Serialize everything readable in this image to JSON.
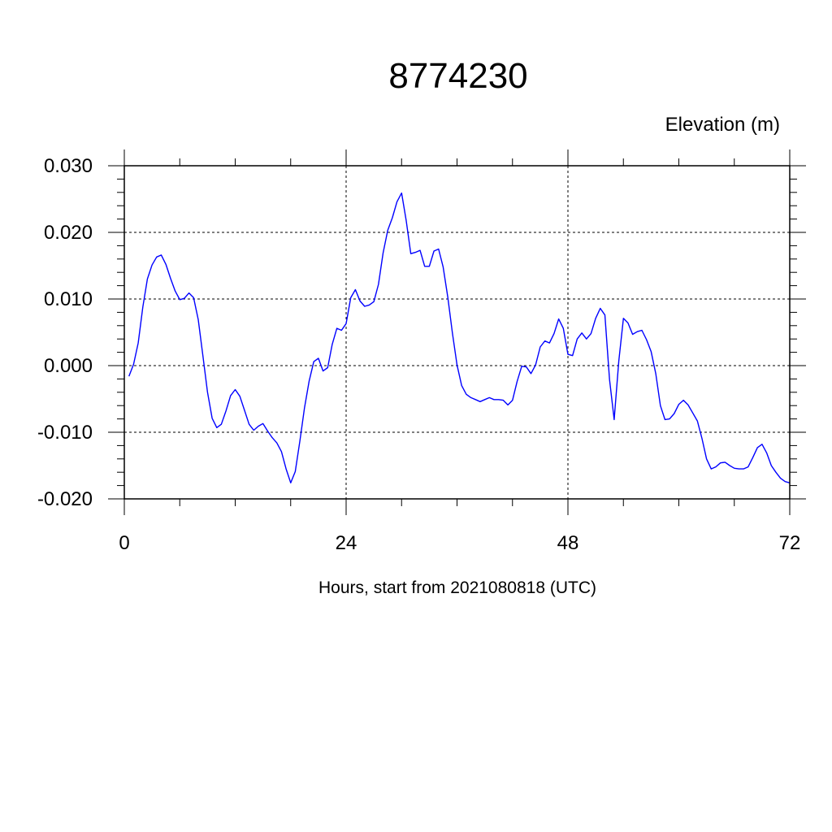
{
  "chart_data": {
    "type": "line",
    "title": "8774230",
    "ylabel": "Elevation (m)",
    "xlabel": "Hours, start from 2021080818 (UTC)",
    "xlim": [
      0,
      72
    ],
    "ylim": [
      -0.02,
      0.03
    ],
    "x_ticks": [
      0,
      24,
      48,
      72
    ],
    "x_tick_labels": [
      "0",
      "24",
      "48",
      "72"
    ],
    "y_ticks": [
      -0.02,
      -0.01,
      0.0,
      0.01,
      0.02,
      0.03
    ],
    "y_tick_labels": [
      "-0.020",
      "-0.010",
      "0.000",
      "0.010",
      "0.020",
      "0.030"
    ],
    "grid": true,
    "series": [
      {
        "color": "#0000ff",
        "x": [
          0.5,
          1.0,
          1.5,
          2.0,
          2.5,
          3.0,
          3.5,
          4.0,
          4.5,
          5.0,
          5.5,
          6.0,
          6.5,
          7.0,
          7.5,
          8.0,
          8.5,
          9.0,
          9.5,
          10.0,
          10.5,
          11.0,
          11.5,
          12.0,
          12.5,
          13.0,
          13.5,
          14.0,
          14.5,
          15.0,
          15.5,
          16.0,
          16.5,
          17.0,
          17.5,
          18.0,
          18.5,
          19.0,
          19.5,
          20.0,
          20.5,
          21.0,
          21.5,
          22.0,
          22.5,
          23.0,
          23.5,
          24.0,
          24.5,
          25.0,
          25.5,
          26.0,
          26.5,
          27.0,
          27.5,
          28.0,
          28.5,
          29.0,
          29.5,
          30.0,
          30.5,
          31.0,
          31.5,
          32.0,
          32.5,
          33.0,
          33.5,
          34.0,
          34.5,
          35.0,
          35.5,
          36.0,
          36.5,
          37.0,
          37.5,
          38.0,
          38.5,
          39.0,
          39.5,
          40.0,
          40.5,
          41.0,
          41.5,
          42.0,
          42.5,
          43.0,
          43.5,
          44.0,
          44.5,
          45.0,
          45.5,
          46.0,
          46.5,
          47.0,
          47.5,
          48.0,
          48.5,
          49.0,
          49.5,
          50.0,
          50.5,
          51.0,
          51.5,
          52.0,
          52.5,
          53.0,
          53.5,
          54.0,
          54.5,
          55.0,
          55.5,
          56.0,
          56.5,
          57.0,
          57.5,
          58.0,
          58.5,
          59.0,
          59.5,
          60.0,
          60.5,
          61.0,
          61.5,
          62.0,
          62.5,
          63.0,
          63.5,
          64.0,
          64.5,
          65.0,
          65.5,
          66.0,
          66.5,
          67.0,
          67.5,
          68.0,
          68.5,
          69.0,
          69.5,
          70.0,
          70.5,
          71.0,
          71.5,
          72.0
        ],
        "y": [
          -0.0016,
          0.0002,
          0.0034,
          0.0088,
          0.013,
          0.0151,
          0.0163,
          0.0166,
          0.0152,
          0.0131,
          0.0112,
          0.0099,
          0.0101,
          0.0109,
          0.0102,
          0.0069,
          0.0015,
          -0.004,
          -0.0079,
          -0.0093,
          -0.0088,
          -0.0068,
          -0.0045,
          -0.0036,
          -0.0046,
          -0.0067,
          -0.0088,
          -0.0097,
          -0.0091,
          -0.0087,
          -0.0098,
          -0.0108,
          -0.0116,
          -0.0129,
          -0.0155,
          -0.0176,
          -0.0159,
          -0.0113,
          -0.0063,
          -0.0023,
          0.0006,
          0.0011,
          -0.0008,
          -0.0003,
          0.0032,
          0.0056,
          0.0053,
          0.0063,
          0.0102,
          0.0114,
          0.0097,
          0.0089,
          0.0091,
          0.0096,
          0.0122,
          0.0169,
          0.0203,
          0.0222,
          0.0246,
          0.0259,
          0.0218,
          0.0168,
          0.017,
          0.0173,
          0.0149,
          0.0149,
          0.0172,
          0.0175,
          0.0148,
          0.0103,
          0.0049,
          0.0001,
          -0.003,
          -0.0043,
          -0.0048,
          -0.0051,
          -0.0054,
          -0.0051,
          -0.0048,
          -0.0051,
          -0.0051,
          -0.0052,
          -0.0059,
          -0.0052,
          -0.0024,
          -0.0001,
          -0.0002,
          -0.0012,
          0.0001,
          0.0028,
          0.0037,
          0.0034,
          0.0048,
          0.007,
          0.0056,
          0.0017,
          0.0015,
          0.004,
          0.0049,
          0.004,
          0.0048,
          0.0071,
          0.0086,
          0.0076,
          -0.0021,
          -0.0081,
          0.0007,
          0.0071,
          0.0064,
          0.0047,
          0.0051,
          0.0053,
          0.0039,
          0.0021,
          -0.0012,
          -0.006,
          -0.0081,
          -0.008,
          -0.0072,
          -0.0058,
          -0.0052,
          -0.0059,
          -0.0071,
          -0.0083,
          -0.0109,
          -0.014,
          -0.0155,
          -0.0152,
          -0.0146,
          -0.0145,
          -0.015,
          -0.0154,
          -0.0155,
          -0.0155,
          -0.0152,
          -0.0138,
          -0.0123,
          -0.0118,
          -0.0131,
          -0.015,
          -0.016,
          -0.0169,
          -0.0174,
          -0.0176
        ]
      }
    ]
  }
}
